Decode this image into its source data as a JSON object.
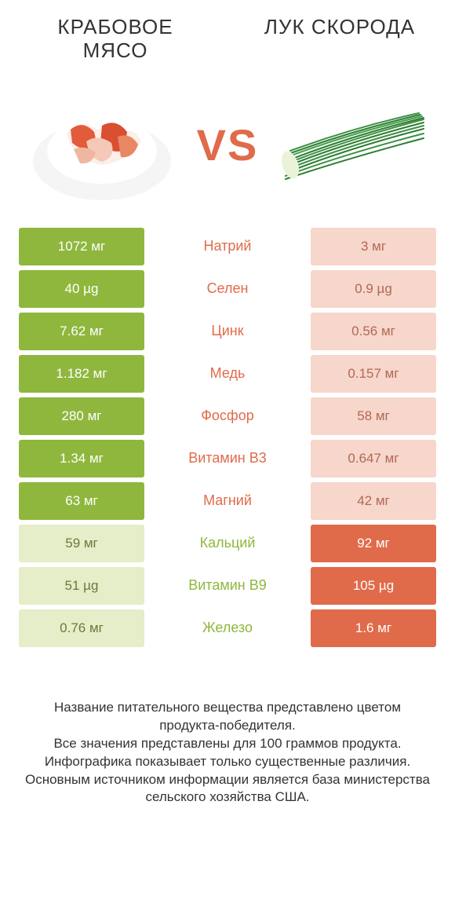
{
  "colors": {
    "green": "#8fb73e",
    "orange": "#e06b4a",
    "pale_green": "#e5edc9",
    "pale_orange": "#f7d6cb",
    "text": "#333333",
    "bg": "#ffffff"
  },
  "header": {
    "left_title": "Крабовое мясо",
    "right_title": "Лук скорода",
    "vs": "VS"
  },
  "rows": [
    {
      "left": "1072 мг",
      "mid": "Натрий",
      "right": "3 мг",
      "winner": "left"
    },
    {
      "left": "40 µg",
      "mid": "Селен",
      "right": "0.9 µg",
      "winner": "left"
    },
    {
      "left": "7.62 мг",
      "mid": "Цинк",
      "right": "0.56 мг",
      "winner": "left"
    },
    {
      "left": "1.182 мг",
      "mid": "Медь",
      "right": "0.157 мг",
      "winner": "left"
    },
    {
      "left": "280 мг",
      "mid": "Фосфор",
      "right": "58 мг",
      "winner": "left"
    },
    {
      "left": "1.34 мг",
      "mid": "Витамин B3",
      "right": "0.647 мг",
      "winner": "left"
    },
    {
      "left": "63 мг",
      "mid": "Магний",
      "right": "42 мг",
      "winner": "left"
    },
    {
      "left": "59 мг",
      "mid": "Кальций",
      "right": "92 мг",
      "winner": "right"
    },
    {
      "left": "51 µg",
      "mid": "Витамин B9",
      "right": "105 µg",
      "winner": "right"
    },
    {
      "left": "0.76 мг",
      "mid": "Железо",
      "right": "1.6 мг",
      "winner": "right"
    }
  ],
  "footer": {
    "l1": "Название питательного вещества представлено цветом продукта-победителя.",
    "l2": "Все значения представлены для 100 граммов продукта.",
    "l3": "Инфографика показывает только существенные различия.",
    "l4": "Основным источником информации является база министерства сельского хозяйства США."
  }
}
